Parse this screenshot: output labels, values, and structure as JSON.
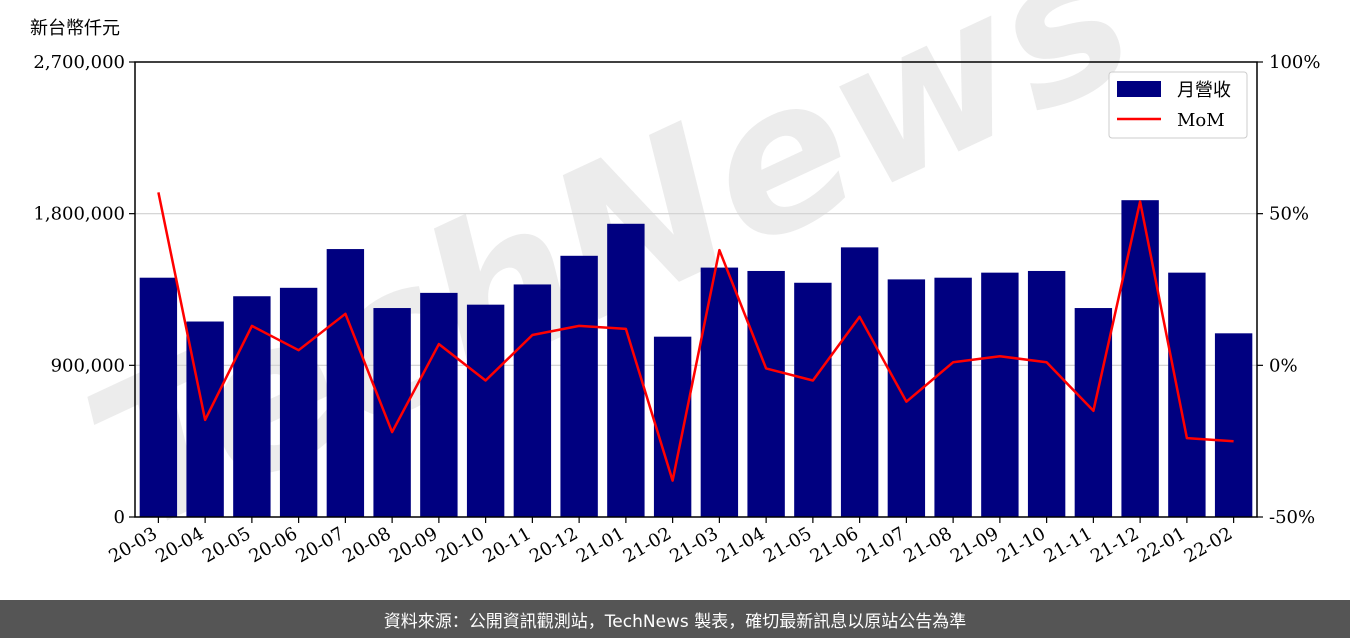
{
  "unit_label": "新台幣仟元",
  "footer": "資料來源：公開資訊觀測站，TechNews 製表，確切最新訊息以原站公告為準",
  "watermark": "TechNews",
  "colors": {
    "bar": "#000080",
    "line": "#ff0000",
    "grid": "#d0d0d0",
    "footer_bg": "#555555"
  },
  "chart_data": {
    "type": "bar",
    "categories": [
      "20-03",
      "20-04",
      "20-05",
      "20-06",
      "20-07",
      "20-08",
      "20-09",
      "20-10",
      "20-11",
      "20-12",
      "21-01",
      "21-02",
      "21-03",
      "21-04",
      "21-05",
      "21-06",
      "21-07",
      "21-08",
      "21-09",
      "21-10",
      "21-11",
      "21-12",
      "22-01",
      "22-02"
    ],
    "series": [
      {
        "name": "月營收",
        "type": "bar",
        "axis": "left",
        "values": [
          1420000,
          1160000,
          1310000,
          1360000,
          1590000,
          1240000,
          1330000,
          1260000,
          1380000,
          1550000,
          1740000,
          1070000,
          1480000,
          1460000,
          1390000,
          1600000,
          1410000,
          1420000,
          1450000,
          1460000,
          1240000,
          1880000,
          1450000,
          1090000
        ]
      },
      {
        "name": "MoM",
        "type": "line",
        "axis": "right",
        "values": [
          57,
          -18,
          13,
          5,
          17,
          -22,
          7,
          -5,
          10,
          13,
          12,
          -38,
          38,
          -1,
          -5,
          16,
          -12,
          1,
          3,
          1,
          -15,
          54,
          -24,
          -25
        ]
      }
    ],
    "ylim_left": [
      0,
      2700000
    ],
    "yticks_left": [
      "0",
      "900,000",
      "1,800,000",
      "2,700,000"
    ],
    "ylim_right": [
      -50,
      100
    ],
    "yticks_right": [
      "-50%",
      "0%",
      "50%",
      "100%"
    ],
    "legend_position": "top-right",
    "grid": "horizontal"
  }
}
